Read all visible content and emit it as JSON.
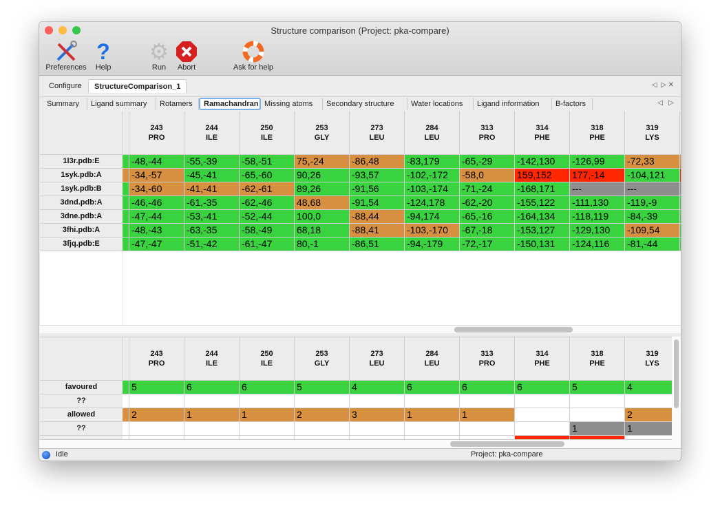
{
  "window": {
    "title": "Structure comparison (Project: pka-compare)"
  },
  "toolbar": [
    {
      "label": "Preferences",
      "icon": "wrench-screwdriver-icon"
    },
    {
      "label": "Help",
      "icon": "question-icon"
    },
    {
      "label": "Run",
      "icon": "gear-icon"
    },
    {
      "label": "Abort",
      "icon": "stop-icon"
    },
    {
      "label": "Ask for help",
      "icon": "lifebuoy-icon"
    }
  ],
  "tabs": [
    "Configure",
    "StructureComparison_1"
  ],
  "active_tab": "StructureComparison_1",
  "subtabs": [
    "Summary",
    "Ligand summary",
    "Rotamers",
    "Ramachandran",
    "Missing atoms",
    "Secondary structure",
    "Water locations",
    "Ligand information",
    "B-factors"
  ],
  "active_subtab": "Ramachandran",
  "colors": {
    "favoured": "#39d33f",
    "allowed": "#d79040",
    "outlier": "#ff2600",
    "missing": "#8e8e8e",
    "none": "#ffffff"
  },
  "columns": [
    [
      "243",
      "PRO"
    ],
    [
      "244",
      "ILE"
    ],
    [
      "250",
      "ILE"
    ],
    [
      "253",
      "GLY"
    ],
    [
      "273",
      "LEU"
    ],
    [
      "284",
      "LEU"
    ],
    [
      "313",
      "PRO"
    ],
    [
      "314",
      "PHE"
    ],
    [
      "318",
      "PHE"
    ],
    [
      "319",
      "LYS"
    ]
  ],
  "top_table": {
    "rows": [
      {
        "label": "1l3r.pdb:E",
        "edge": [
          "favoured",
          "allowed"
        ],
        "cells": [
          [
            "-48,-44",
            "favoured"
          ],
          [
            "-55,-39",
            "favoured"
          ],
          [
            "-58,-51",
            "favoured"
          ],
          [
            "75,-24",
            "allowed"
          ],
          [
            "-86,48",
            "allowed"
          ],
          [
            "-83,179",
            "favoured"
          ],
          [
            "-65,-29",
            "favoured"
          ],
          [
            "-142,130",
            "favoured"
          ],
          [
            "-126,99",
            "favoured"
          ],
          [
            "-72,33",
            "allowed"
          ]
        ]
      },
      {
        "label": "1syk.pdb:A",
        "edge": [
          "allowed",
          "outlier"
        ],
        "cells": [
          [
            "-34,-57",
            "allowed"
          ],
          [
            "-45,-41",
            "favoured"
          ],
          [
            "-65,-60",
            "favoured"
          ],
          [
            "90,26",
            "favoured"
          ],
          [
            "-93,57",
            "favoured"
          ],
          [
            "-102,-172",
            "favoured"
          ],
          [
            "-58,0",
            "allowed"
          ],
          [
            "159,152",
            "outlier"
          ],
          [
            "177,-14",
            "outlier"
          ],
          [
            "-104,121",
            "favoured"
          ]
        ]
      },
      {
        "label": "1syk.pdb:B",
        "edge": [
          "favoured",
          "missing"
        ],
        "cells": [
          [
            "-34,-60",
            "allowed"
          ],
          [
            "-41,-41",
            "allowed"
          ],
          [
            "-62,-61",
            "allowed"
          ],
          [
            "89,26",
            "favoured"
          ],
          [
            "-91,56",
            "favoured"
          ],
          [
            "-103,-174",
            "favoured"
          ],
          [
            "-71,-24",
            "favoured"
          ],
          [
            "-168,171",
            "favoured"
          ],
          [
            "---",
            "missing"
          ],
          [
            "---",
            "missing"
          ]
        ]
      },
      {
        "label": "3dnd.pdb:A",
        "edge": [
          "favoured",
          "favoured"
        ],
        "cells": [
          [
            "-46,-46",
            "favoured"
          ],
          [
            "-61,-35",
            "favoured"
          ],
          [
            "-62,-46",
            "favoured"
          ],
          [
            "48,68",
            "allowed"
          ],
          [
            "-91,54",
            "favoured"
          ],
          [
            "-124,178",
            "favoured"
          ],
          [
            "-62,-20",
            "favoured"
          ],
          [
            "-155,122",
            "favoured"
          ],
          [
            "-111,130",
            "favoured"
          ],
          [
            "-119,-9",
            "favoured"
          ]
        ]
      },
      {
        "label": "3dne.pdb:A",
        "edge": [
          "favoured",
          "favoured"
        ],
        "cells": [
          [
            "-47,-44",
            "favoured"
          ],
          [
            "-53,-41",
            "favoured"
          ],
          [
            "-52,-44",
            "favoured"
          ],
          [
            "100,0",
            "favoured"
          ],
          [
            "-88,44",
            "allowed"
          ],
          [
            "-94,174",
            "favoured"
          ],
          [
            "-65,-16",
            "favoured"
          ],
          [
            "-164,134",
            "favoured"
          ],
          [
            "-118,119",
            "favoured"
          ],
          [
            "-84,-39",
            "favoured"
          ]
        ]
      },
      {
        "label": "3fhi.pdb:A",
        "edge": [
          "favoured",
          "favoured"
        ],
        "cells": [
          [
            "-48,-43",
            "favoured"
          ],
          [
            "-63,-35",
            "favoured"
          ],
          [
            "-58,-49",
            "favoured"
          ],
          [
            "68,18",
            "favoured"
          ],
          [
            "-88,41",
            "allowed"
          ],
          [
            "-103,-170",
            "allowed"
          ],
          [
            "-67,-18",
            "favoured"
          ],
          [
            "-153,127",
            "favoured"
          ],
          [
            "-129,130",
            "favoured"
          ],
          [
            "-109,54",
            "allowed"
          ]
        ]
      },
      {
        "label": "3fjq.pdb:E",
        "edge": [
          "favoured",
          "favoured"
        ],
        "cells": [
          [
            "-47,-47",
            "favoured"
          ],
          [
            "-51,-42",
            "favoured"
          ],
          [
            "-61,-47",
            "favoured"
          ],
          [
            "80,-1",
            "favoured"
          ],
          [
            "-86,51",
            "favoured"
          ],
          [
            "-94,-179",
            "favoured"
          ],
          [
            "-72,-17",
            "favoured"
          ],
          [
            "-150,131",
            "favoured"
          ],
          [
            "-124,116",
            "favoured"
          ],
          [
            "-81,-44",
            "favoured"
          ]
        ]
      }
    ]
  },
  "bottom_table": {
    "rows": [
      {
        "label": "favoured",
        "edge": "favoured",
        "cells": [
          [
            "5",
            "favoured"
          ],
          [
            "6",
            "favoured"
          ],
          [
            "6",
            "favoured"
          ],
          [
            "5",
            "favoured"
          ],
          [
            "4",
            "favoured"
          ],
          [
            "6",
            "favoured"
          ],
          [
            "6",
            "favoured"
          ],
          [
            "6",
            "favoured"
          ],
          [
            "5",
            "favoured"
          ],
          [
            "4",
            "favoured"
          ]
        ]
      },
      {
        "label": "??",
        "edge": "none",
        "cells": [
          [
            "",
            "none"
          ],
          [
            "",
            "none"
          ],
          [
            "",
            "none"
          ],
          [
            "",
            "none"
          ],
          [
            "",
            "none"
          ],
          [
            "",
            "none"
          ],
          [
            "",
            "none"
          ],
          [
            "",
            "none"
          ],
          [
            "",
            "none"
          ],
          [
            "",
            "none"
          ]
        ]
      },
      {
        "label": "allowed",
        "edge": "allowed",
        "cells": [
          [
            "2",
            "allowed"
          ],
          [
            "1",
            "allowed"
          ],
          [
            "1",
            "allowed"
          ],
          [
            "2",
            "allowed"
          ],
          [
            "3",
            "allowed"
          ],
          [
            "1",
            "allowed"
          ],
          [
            "1",
            "allowed"
          ],
          [
            "",
            "none"
          ],
          [
            "",
            "none"
          ],
          [
            "2",
            "allowed"
          ]
        ]
      },
      {
        "label": "??",
        "edge": "none",
        "cells": [
          [
            "",
            "none"
          ],
          [
            "",
            "none"
          ],
          [
            "",
            "none"
          ],
          [
            "",
            "none"
          ],
          [
            "",
            "none"
          ],
          [
            "",
            "none"
          ],
          [
            "",
            "none"
          ],
          [
            "",
            "none"
          ],
          [
            "1",
            "missing"
          ],
          [
            "1",
            "missing"
          ]
        ]
      },
      {
        "label": "",
        "edge": "none",
        "cells": [
          [
            "",
            "none"
          ],
          [
            "",
            "none"
          ],
          [
            "",
            "none"
          ],
          [
            "",
            "none"
          ],
          [
            "",
            "none"
          ],
          [
            "",
            "none"
          ],
          [
            "",
            "none"
          ],
          [
            "",
            "outlier"
          ],
          [
            "",
            "outlier"
          ],
          [
            "",
            "none"
          ]
        ]
      }
    ]
  },
  "status": {
    "state": "Idle",
    "project": "Project: pka-compare"
  }
}
